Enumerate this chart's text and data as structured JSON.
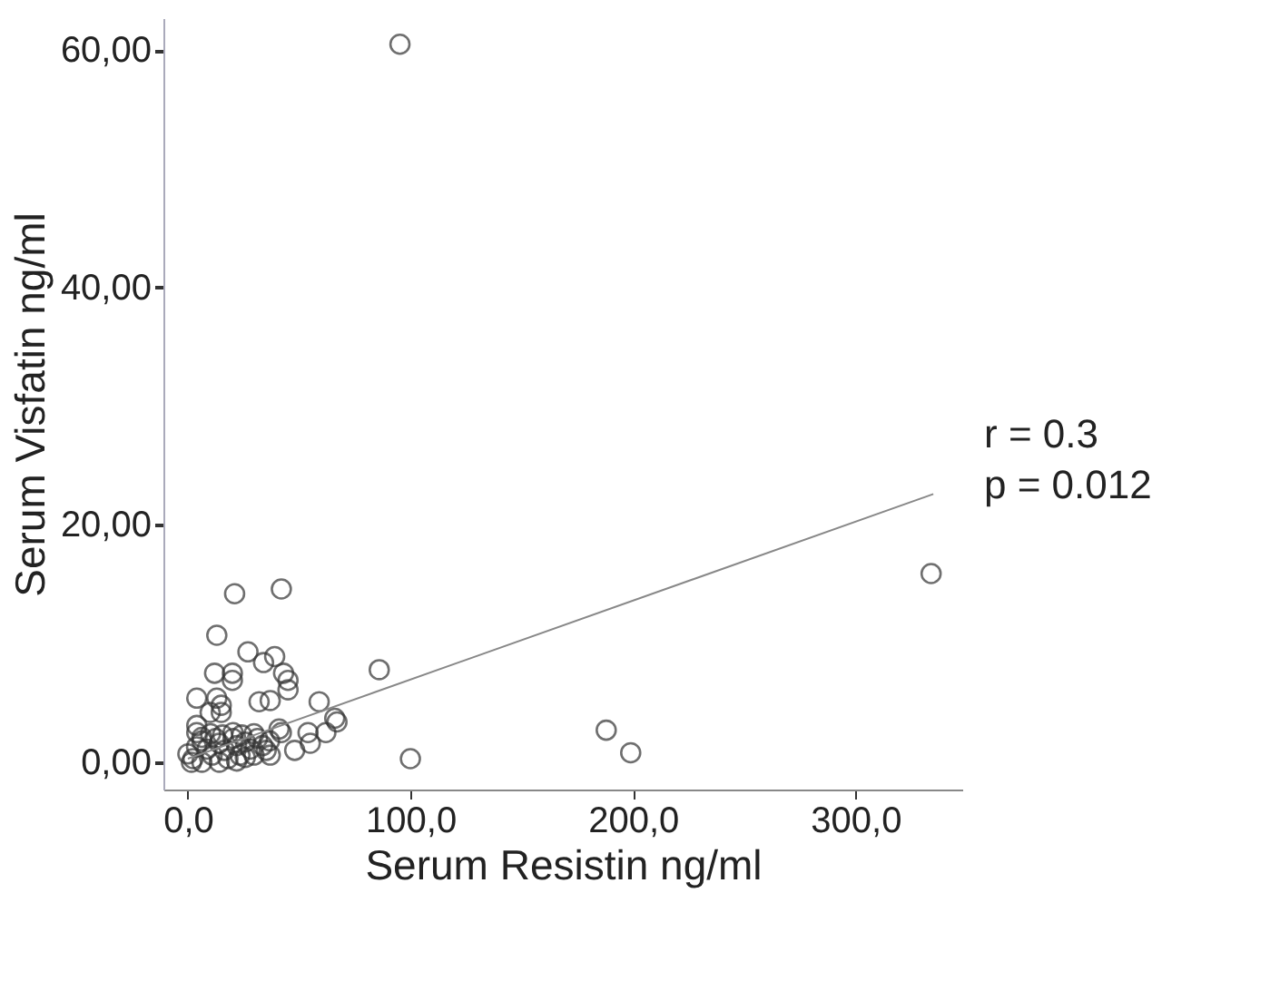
{
  "chart_data": {
    "type": "scatter",
    "xlabel": "Serum Resistin ng/ml",
    "ylabel": "Serum Visfatin ng/ml",
    "xlim": [
      -11,
      348
    ],
    "ylim": [
      -2.3,
      62.7
    ],
    "xticks": [
      {
        "value": 0,
        "label": "0,0"
      },
      {
        "value": 100,
        "label": "100,0"
      },
      {
        "value": 200,
        "label": "200,0"
      },
      {
        "value": 300,
        "label": "300,0"
      }
    ],
    "yticks": [
      {
        "value": 0,
        "label": "0,00"
      },
      {
        "value": 20,
        "label": "20,00"
      },
      {
        "value": 40,
        "label": "40,00"
      },
      {
        "value": 60,
        "label": "60,00"
      }
    ],
    "grid": false,
    "annotations": [
      "r = 0.3",
      "p = 0.012"
    ],
    "series": [
      {
        "marker": "circle",
        "color": "#333333",
        "x": [
          95.3,
          334,
          21,
          42,
          13,
          86,
          27,
          39,
          34,
          43,
          45,
          45,
          20,
          20,
          12,
          4,
          13,
          15,
          15,
          10,
          32,
          37,
          59,
          62,
          66,
          67,
          41,
          42,
          54,
          55,
          48,
          37,
          100,
          188,
          199,
          4,
          4,
          0,
          2.3,
          3.9,
          6.3,
          8.6,
          10.9,
          12.5,
          14.1,
          16.4,
          18,
          20.3,
          21.9,
          23.4,
          25.8,
          28.1,
          29.7,
          31.3,
          33.6,
          35.2,
          36.7,
          1.6,
          6.3,
          14.1,
          21.9,
          25.8,
          29.7,
          20.3,
          15.6,
          10.2,
          24.2,
          6.3
        ],
        "values": [
          60.5,
          15.9,
          14.2,
          14.6,
          10.7,
          7.8,
          9.3,
          8.9,
          8.4,
          7.5,
          6.9,
          6.1,
          7.5,
          6.9,
          7.5,
          5.4,
          5.4,
          4.8,
          4.2,
          4.2,
          5.1,
          5.2,
          5.1,
          2.5,
          3.7,
          3.4,
          2.8,
          2.5,
          2.5,
          1.6,
          1.0,
          0.6,
          0.3,
          2.7,
          0.8,
          3.1,
          2.5,
          0.7,
          0.3,
          1.3,
          1.8,
          1.1,
          0.6,
          2.0,
          1.6,
          1.0,
          0.3,
          2.0,
          1.4,
          0.6,
          1.7,
          1.1,
          0.6,
          2.0,
          1.4,
          1.0,
          1.8,
          0.0,
          0.0,
          0.0,
          0.1,
          0.4,
          2.4,
          2.5,
          2.3,
          2.4,
          2.3,
          2.1
        ]
      },
      {
        "type": "line",
        "color": "#888888",
        "x": [
          0,
          84,
          335
        ],
        "values": [
          0.3,
          5.9,
          22.6
        ]
      }
    ]
  }
}
